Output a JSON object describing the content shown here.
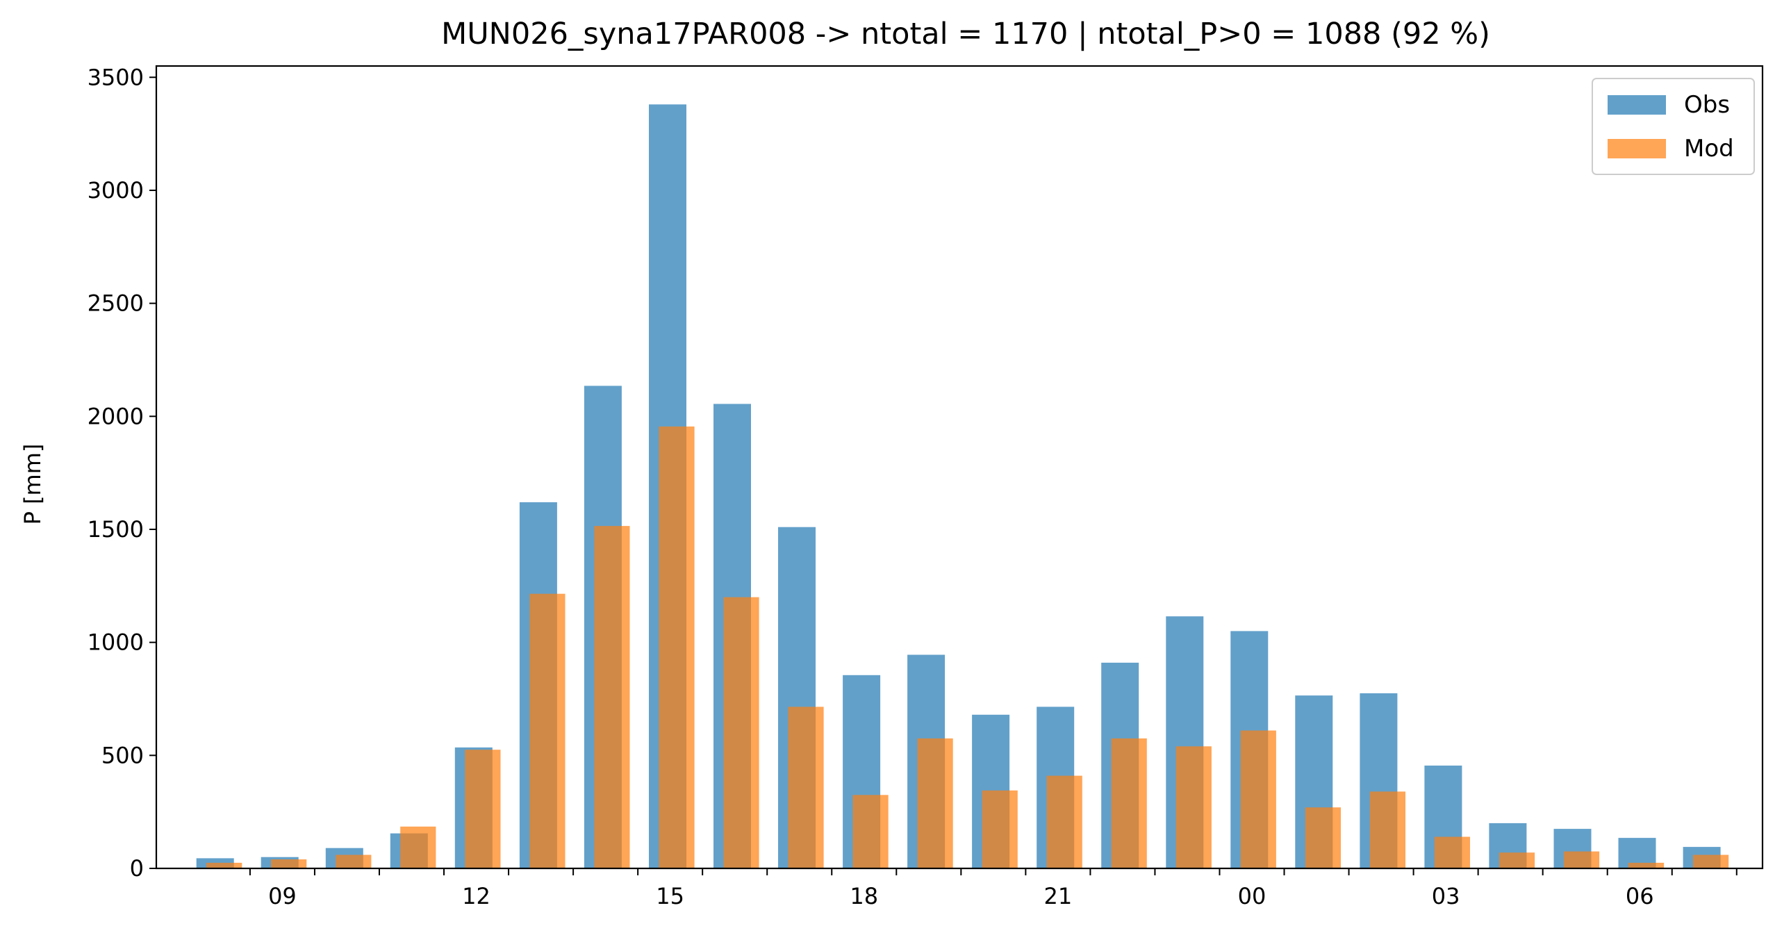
{
  "chart_data": {
    "type": "bar",
    "title": "MUN026_syna17PAR008 -> ntotal = 1170 | ntotal_P>0 = 1088 (92 %)",
    "xlabel": "",
    "ylabel": "P [mm]",
    "ylim": [
      0,
      3550
    ],
    "yticks": [
      0,
      500,
      1000,
      1500,
      2000,
      2500,
      3000,
      3500
    ],
    "x_tick_labels": [
      "09",
      "12",
      "15",
      "18",
      "21",
      "00",
      "03",
      "06"
    ],
    "categories": [
      "08",
      "09",
      "10",
      "11",
      "12",
      "13",
      "14",
      "15",
      "16",
      "17",
      "18",
      "19",
      "20",
      "21",
      "22",
      "23",
      "00",
      "01",
      "02",
      "03",
      "04",
      "05",
      "06",
      "07"
    ],
    "series": [
      {
        "name": "Obs",
        "color": "#1f77b4",
        "values": [
          45,
          50,
          90,
          155,
          535,
          1620,
          2135,
          3380,
          2055,
          1510,
          855,
          945,
          680,
          715,
          910,
          1115,
          1050,
          765,
          775,
          455,
          200,
          175,
          135,
          95
        ]
      },
      {
        "name": "Mod",
        "color": "#ff7f0e",
        "values": [
          25,
          40,
          60,
          185,
          525,
          1215,
          1515,
          1955,
          1200,
          715,
          325,
          575,
          345,
          410,
          575,
          540,
          610,
          270,
          340,
          140,
          70,
          75,
          25,
          60
        ]
      }
    ],
    "legend_position": "top-right",
    "grid": false
  }
}
